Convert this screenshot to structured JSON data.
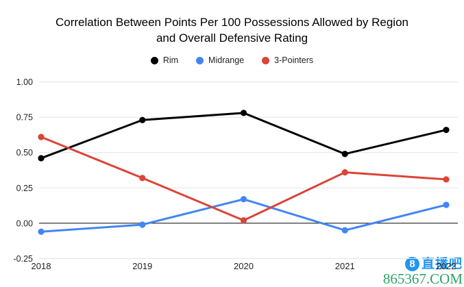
{
  "title": {
    "line1": "Correlation Between Points Per 100 Possessions Allowed by Region",
    "line2": "and Overall Defensive Rating"
  },
  "chart_data": {
    "type": "line",
    "title": "Correlation Between Points Per 100 Possessions Allowed by Region and Overall Defensive Rating",
    "x": [
      "2018",
      "2019",
      "2020",
      "2021",
      "2022"
    ],
    "series": [
      {
        "name": "Rim",
        "color": "#000000",
        "values": [
          0.46,
          0.73,
          0.78,
          0.49,
          0.66
        ]
      },
      {
        "name": "Midrange",
        "color": "#4285F4",
        "values": [
          -0.06,
          -0.01,
          0.17,
          -0.05,
          0.13
        ]
      },
      {
        "name": "3-Pointers",
        "color": "#DB4437",
        "values": [
          0.61,
          0.32,
          0.02,
          0.36,
          0.31
        ]
      }
    ],
    "xlabel": "",
    "ylabel": "",
    "ylim": [
      -0.25,
      1.0
    ],
    "yticks": [
      1.0,
      0.75,
      0.5,
      0.25,
      0.0,
      -0.25
    ],
    "ytick_labels": [
      "1.00",
      "0.75",
      "0.50",
      "0.25",
      "0.00",
      "-0.25"
    ],
    "grid": true,
    "legend_position": "top",
    "grid_color": "#e3e3e3",
    "zero_line_color": "#000000",
    "axis_label_color": "#222222"
  },
  "watermark": {
    "badge_text": "8",
    "site_name": "直播吧",
    "url": "865367.COM",
    "badge_color": "#2196F3",
    "name_color": "#2196F3",
    "url_color": "#2EA26A"
  }
}
